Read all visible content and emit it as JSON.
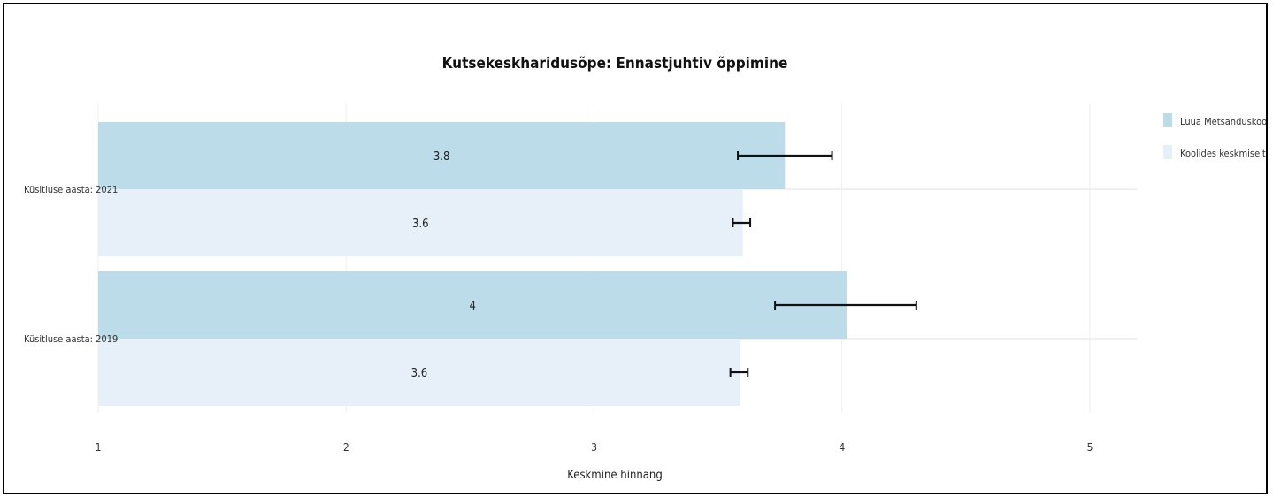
{
  "chart_data": {
    "type": "bar",
    "orientation": "horizontal",
    "title": "Kutsekeskharidusõpe: Ennastjuhtiv õppimine",
    "xlabel": "Keskmine hinnang",
    "ylabel": "",
    "xlim": [
      1,
      5.2
    ],
    "xticks": [
      1,
      2,
      3,
      4,
      5
    ],
    "categories": [
      "Küsitluse aasta: 2021",
      "Küsitluse aasta: 2019"
    ],
    "series": [
      {
        "name": "Luua Metsanduskool",
        "color": "#bddcea",
        "values": [
          3.77,
          4.02
        ],
        "labels": [
          "3.8",
          "4"
        ],
        "error_low": [
          3.58,
          3.73
        ],
        "error_high": [
          3.96,
          4.3
        ]
      },
      {
        "name": "Koolides keskmiselt",
        "color": "#e7f0f9",
        "values": [
          3.6,
          3.59
        ],
        "labels": [
          "3.6",
          "3.6"
        ],
        "error_low": [
          3.56,
          3.55
        ],
        "error_high": [
          3.63,
          3.62
        ]
      }
    ],
    "legend_position": "top-right",
    "grid": true
  }
}
